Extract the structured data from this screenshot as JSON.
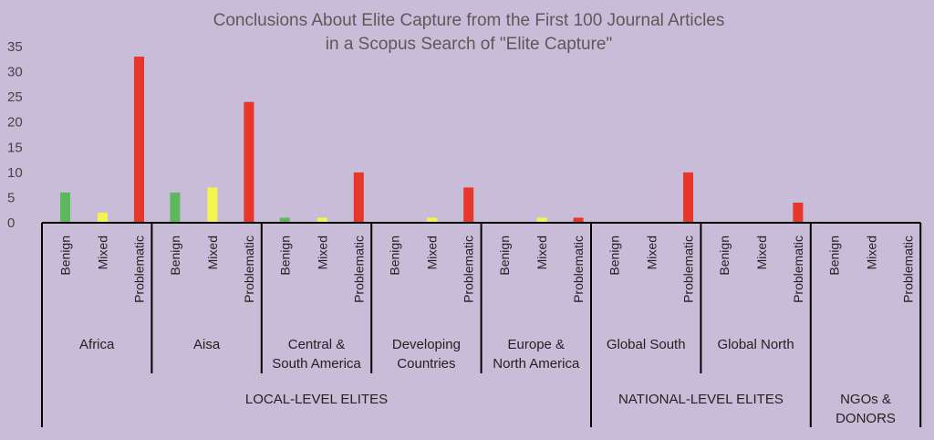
{
  "chart_data": {
    "type": "bar",
    "title_lines": [
      "Conclusions About Elite Capture from the First 100 Journal Articles",
      "in a Scopus Search of \"Elite Capture\""
    ],
    "ylim": [
      0,
      35
    ],
    "yticks": [
      0,
      5,
      10,
      15,
      20,
      25,
      30,
      35
    ],
    "bar_labels": [
      "Benign",
      "Mixed",
      "Problematic"
    ],
    "colors": {
      "Benign": "#5cb85c",
      "Mixed": "#f4f44c",
      "Problematic": "#e8362a"
    },
    "groups": [
      {
        "label_lines": [
          "Africa"
        ],
        "values": [
          6,
          2,
          33
        ]
      },
      {
        "label_lines": [
          "Aisa"
        ],
        "values": [
          6,
          7,
          24
        ]
      },
      {
        "label_lines": [
          "Central &",
          "South America"
        ],
        "values": [
          1,
          1,
          10
        ]
      },
      {
        "label_lines": [
          "Developing",
          "Countries"
        ],
        "values": [
          0,
          1,
          7
        ]
      },
      {
        "label_lines": [
          "Europe &",
          "North America"
        ],
        "values": [
          0,
          1,
          1
        ]
      },
      {
        "label_lines": [
          "Global South"
        ],
        "values": [
          0,
          0,
          10
        ]
      },
      {
        "label_lines": [
          "Global North"
        ],
        "values": [
          0,
          0,
          4
        ]
      },
      {
        "label_lines": [],
        "values": [
          0,
          0,
          0
        ]
      }
    ],
    "levels": [
      {
        "label_lines": [
          "LOCAL-LEVEL ELITES"
        ],
        "groups": [
          0,
          4
        ]
      },
      {
        "label_lines": [
          "NATIONAL-LEVEL ELITES"
        ],
        "groups": [
          5,
          6
        ]
      },
      {
        "label_lines": [
          "NGOs   &",
          "DONORS"
        ],
        "groups": [
          7,
          7
        ]
      }
    ]
  }
}
